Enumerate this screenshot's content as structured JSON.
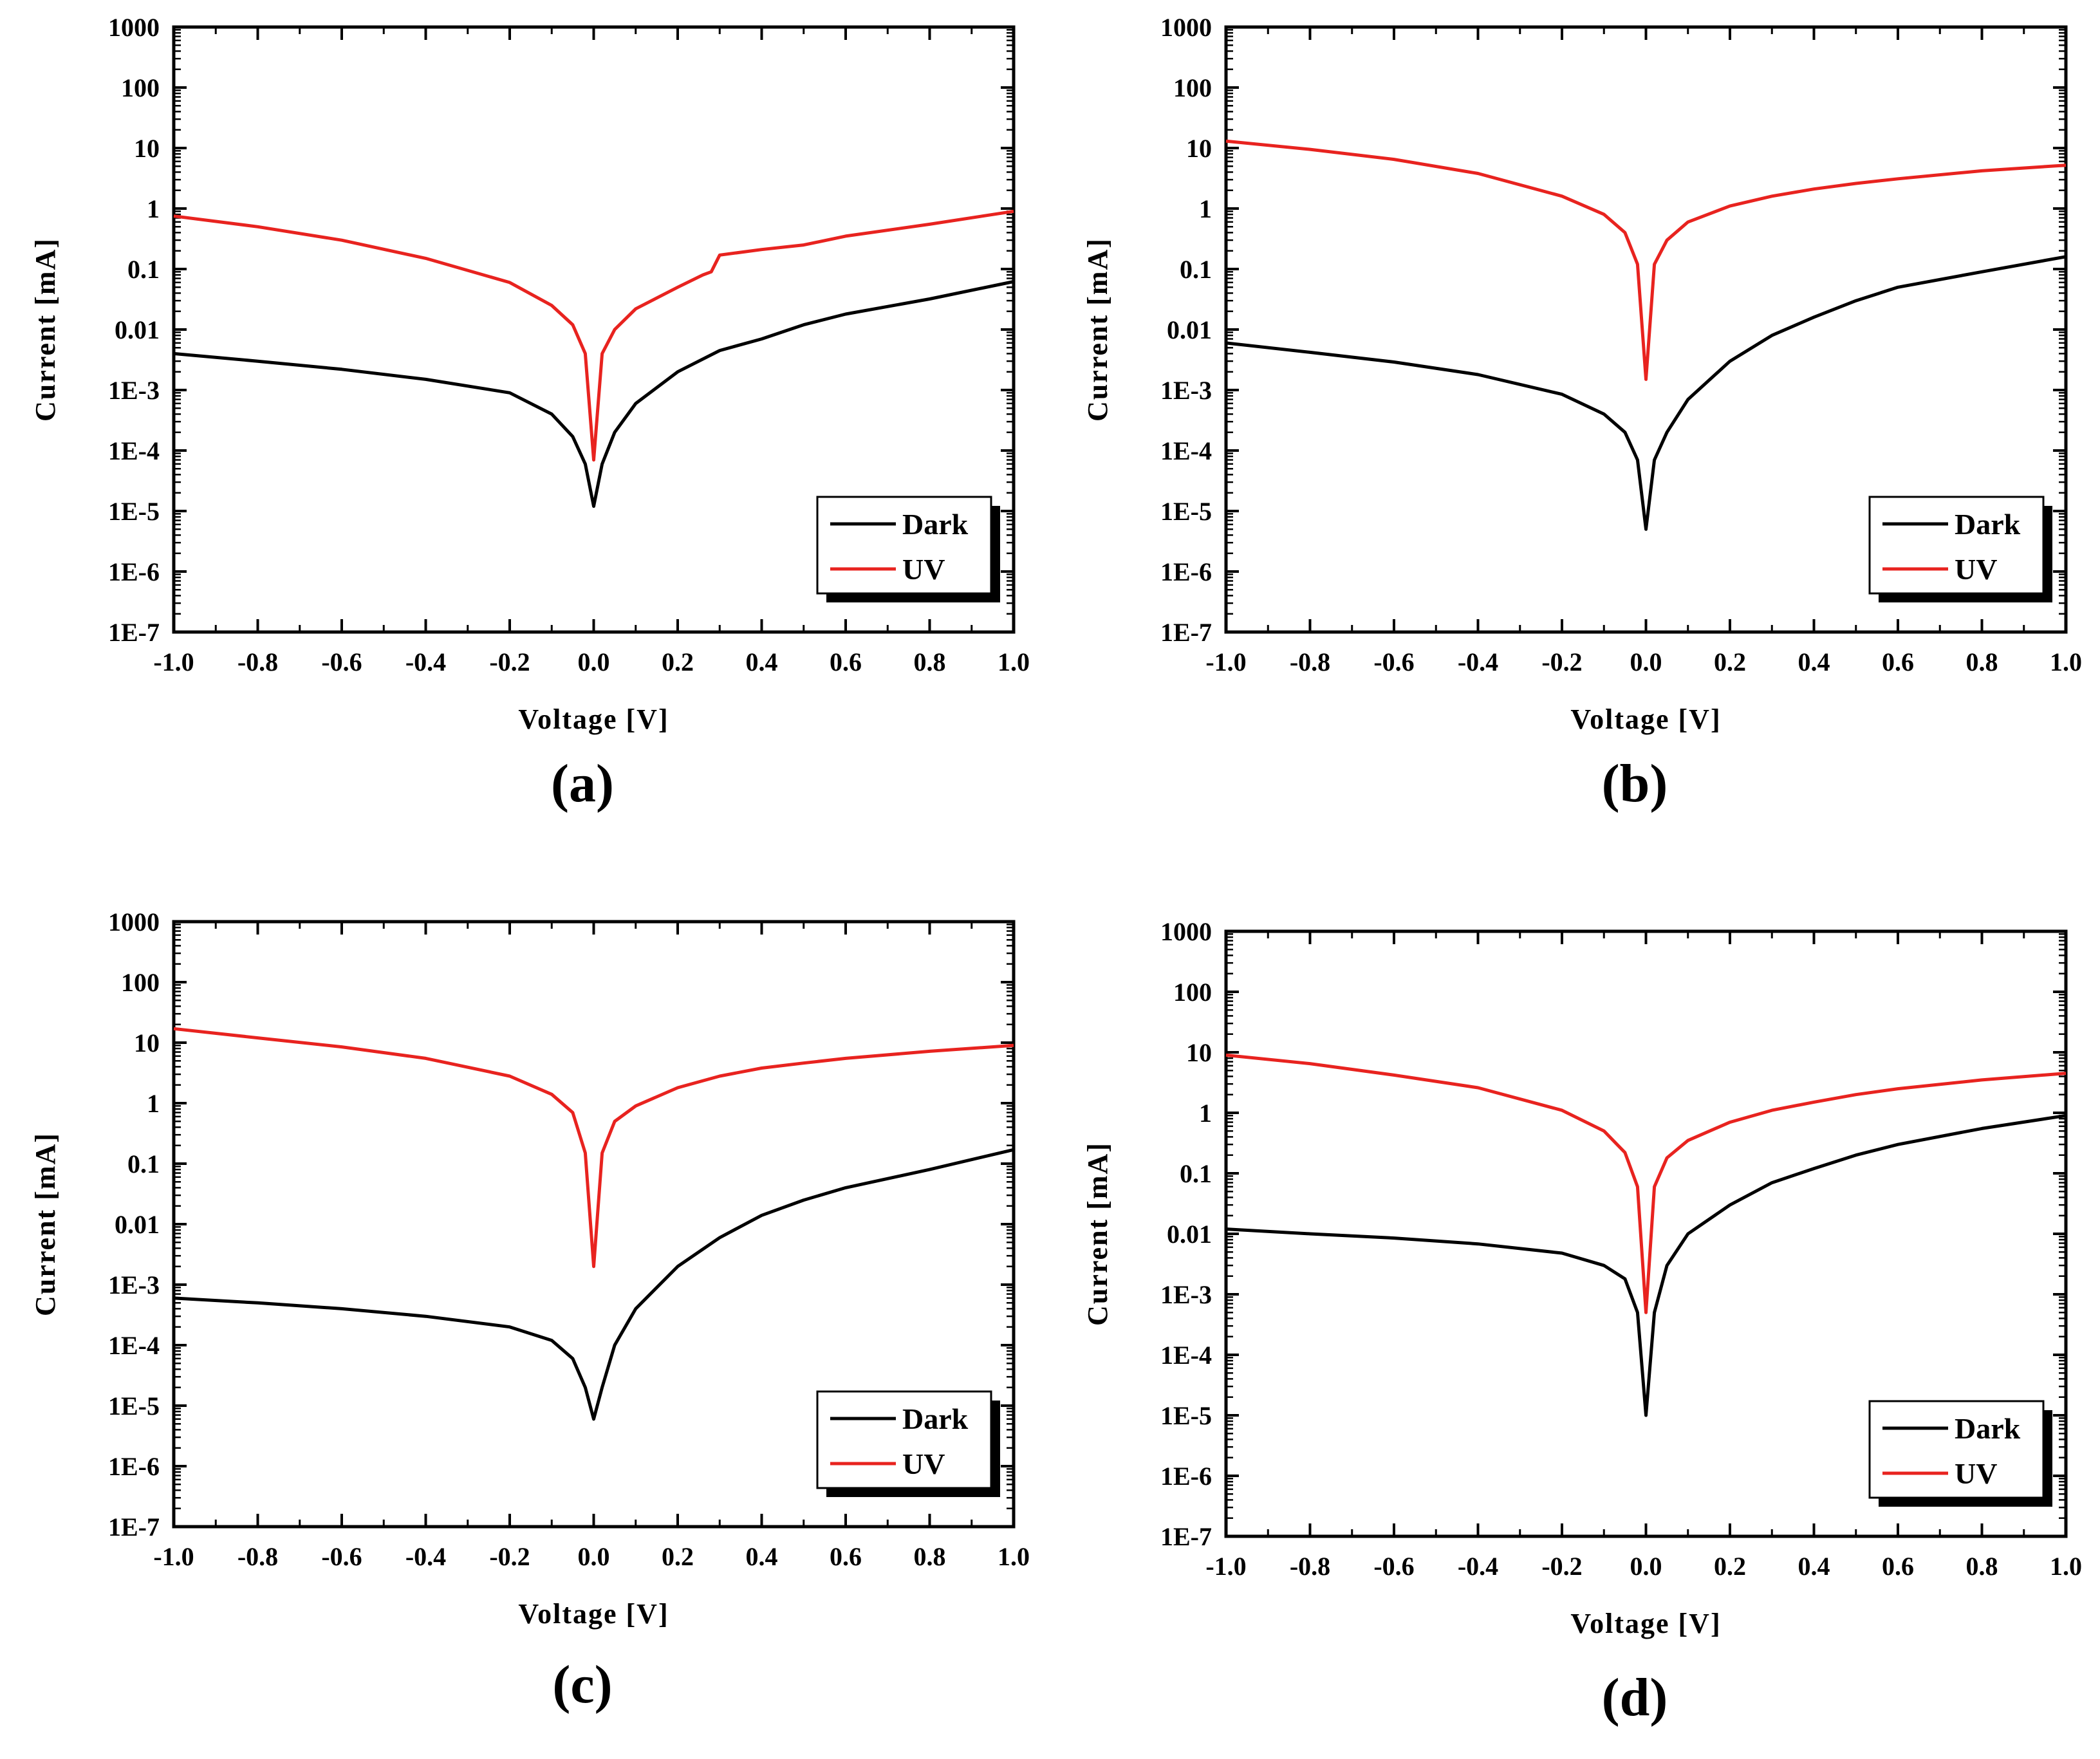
{
  "chart_data": [
    {
      "type": "line",
      "panel": "(a)",
      "xlabel": "Voltage [V]",
      "ylabel": "Current [mA]",
      "xlim": [
        -1.0,
        1.0
      ],
      "ylim": [
        1e-07,
        1000
      ],
      "yscale": "log",
      "xticks": [
        "-1.0",
        "-0.8",
        "-0.6",
        "-0.4",
        "-0.2",
        "0.0",
        "0.2",
        "0.4",
        "0.6",
        "0.8",
        "1.0"
      ],
      "yticks": [
        "1000",
        "100",
        "10",
        "1",
        "0.1",
        "0.01",
        "1E-3",
        "1E-4",
        "1E-5",
        "1E-6",
        "1E-7"
      ],
      "legend_position": "lower-right",
      "series": [
        {
          "name": "Dark",
          "color": "#000000",
          "x": [
            -1.0,
            -0.8,
            -0.6,
            -0.4,
            -0.2,
            -0.1,
            -0.05,
            -0.02,
            0.0,
            0.02,
            0.05,
            0.1,
            0.2,
            0.3,
            0.4,
            0.5,
            0.6,
            0.8,
            1.0
          ],
          "y": [
            0.004,
            0.003,
            0.0022,
            0.0015,
            0.0009,
            0.0004,
            0.00017,
            6e-05,
            1.2e-05,
            6e-05,
            0.0002,
            0.0006,
            0.002,
            0.0045,
            0.007,
            0.012,
            0.018,
            0.032,
            0.062
          ]
        },
        {
          "name": "UV",
          "color": "#e8231f",
          "x": [
            -1.0,
            -0.8,
            -0.6,
            -0.4,
            -0.2,
            -0.1,
            -0.05,
            -0.02,
            0.0,
            0.02,
            0.05,
            0.1,
            0.2,
            0.26,
            0.28,
            0.3,
            0.4,
            0.5,
            0.6,
            0.8,
            1.0
          ],
          "y": [
            0.75,
            0.5,
            0.3,
            0.15,
            0.06,
            0.025,
            0.012,
            0.004,
            7e-05,
            0.004,
            0.01,
            0.022,
            0.05,
            0.08,
            0.09,
            0.17,
            0.21,
            0.25,
            0.35,
            0.55,
            0.9
          ]
        }
      ]
    },
    {
      "type": "line",
      "panel": "(b)",
      "xlabel": "Voltage [V]",
      "ylabel": "Current [mA]",
      "xlim": [
        -1.0,
        1.0
      ],
      "ylim": [
        1e-07,
        1000
      ],
      "yscale": "log",
      "xticks": [
        "-1.0",
        "-0.8",
        "-0.6",
        "-0.4",
        "-0.2",
        "0.0",
        "0.2",
        "0.4",
        "0.6",
        "0.8",
        "1.0"
      ],
      "yticks": [
        "1000",
        "100",
        "10",
        "1",
        "0.1",
        "0.01",
        "1E-3",
        "1E-4",
        "1E-5",
        "1E-6",
        "1E-7"
      ],
      "legend_position": "lower-right",
      "series": [
        {
          "name": "Dark",
          "color": "#000000",
          "x": [
            -1.0,
            -0.8,
            -0.6,
            -0.4,
            -0.2,
            -0.1,
            -0.05,
            -0.02,
            0.0,
            0.02,
            0.05,
            0.1,
            0.2,
            0.3,
            0.4,
            0.5,
            0.6,
            0.8,
            1.0
          ],
          "y": [
            0.006,
            0.0042,
            0.0029,
            0.0018,
            0.00085,
            0.0004,
            0.0002,
            7e-05,
            5e-06,
            7e-05,
            0.0002,
            0.0007,
            0.003,
            0.008,
            0.016,
            0.03,
            0.05,
            0.09,
            0.16
          ]
        },
        {
          "name": "UV",
          "color": "#e8231f",
          "x": [
            -1.0,
            -0.8,
            -0.6,
            -0.4,
            -0.2,
            -0.1,
            -0.05,
            -0.02,
            0.0,
            0.02,
            0.05,
            0.1,
            0.2,
            0.3,
            0.4,
            0.5,
            0.6,
            0.8,
            1.0
          ],
          "y": [
            13,
            9.5,
            6.5,
            3.8,
            1.6,
            0.8,
            0.4,
            0.12,
            0.0015,
            0.12,
            0.3,
            0.6,
            1.1,
            1.6,
            2.1,
            2.6,
            3.1,
            4.2,
            5.2
          ]
        }
      ]
    },
    {
      "type": "line",
      "panel": "(c)",
      "xlabel": "Voltage [V]",
      "ylabel": "Current [mA]",
      "xlim": [
        -1.0,
        1.0
      ],
      "ylim": [
        1e-07,
        1000
      ],
      "yscale": "log",
      "xticks": [
        "-1.0",
        "-0.8",
        "-0.6",
        "-0.4",
        "-0.2",
        "0.0",
        "0.2",
        "0.4",
        "0.6",
        "0.8",
        "1.0"
      ],
      "yticks": [
        "1000",
        "100",
        "10",
        "1",
        "0.1",
        "0.01",
        "1E-3",
        "1E-4",
        "1E-5",
        "1E-6",
        "1E-7"
      ],
      "legend_position": "lower-right",
      "series": [
        {
          "name": "Dark",
          "color": "#000000",
          "x": [
            -1.0,
            -0.8,
            -0.6,
            -0.4,
            -0.2,
            -0.1,
            -0.05,
            -0.02,
            0.0,
            0.02,
            0.05,
            0.1,
            0.2,
            0.3,
            0.4,
            0.5,
            0.6,
            0.8,
            1.0
          ],
          "y": [
            0.0006,
            0.0005,
            0.0004,
            0.0003,
            0.0002,
            0.00012,
            6e-05,
            2e-05,
            6e-06,
            2e-05,
            0.0001,
            0.0004,
            0.002,
            0.006,
            0.014,
            0.025,
            0.04,
            0.08,
            0.17
          ]
        },
        {
          "name": "UV",
          "color": "#e8231f",
          "x": [
            -1.0,
            -0.8,
            -0.6,
            -0.4,
            -0.2,
            -0.1,
            -0.05,
            -0.02,
            0.0,
            0.02,
            0.05,
            0.1,
            0.2,
            0.3,
            0.4,
            0.5,
            0.6,
            0.8,
            1.0
          ],
          "y": [
            17,
            12,
            8.5,
            5.5,
            2.8,
            1.4,
            0.7,
            0.15,
            0.002,
            0.15,
            0.5,
            0.9,
            1.8,
            2.8,
            3.8,
            4.6,
            5.5,
            7.2,
            9
          ]
        }
      ]
    },
    {
      "type": "line",
      "panel": "(d)",
      "xlabel": "Voltage [V]",
      "ylabel": "Current [mA]",
      "xlim": [
        -1.0,
        1.0
      ],
      "ylim": [
        1e-07,
        1000
      ],
      "yscale": "log",
      "xticks": [
        "-1.0",
        "-0.8",
        "-0.6",
        "-0.4",
        "-0.2",
        "0.0",
        "0.2",
        "0.4",
        "0.6",
        "0.8",
        "1.0"
      ],
      "yticks": [
        "1000",
        "100",
        "10",
        "1",
        "0.1",
        "0.01",
        "1E-3",
        "1E-4",
        "1E-5",
        "1E-6",
        "1E-7"
      ],
      "legend_position": "lower-right",
      "series": [
        {
          "name": "Dark",
          "color": "#000000",
          "x": [
            -1.0,
            -0.8,
            -0.6,
            -0.4,
            -0.2,
            -0.1,
            -0.05,
            -0.02,
            0.0,
            0.02,
            0.05,
            0.1,
            0.2,
            0.3,
            0.4,
            0.5,
            0.6,
            0.8,
            1.0
          ],
          "y": [
            0.012,
            0.01,
            0.0085,
            0.0068,
            0.0048,
            0.003,
            0.0018,
            0.0005,
            1e-05,
            0.0005,
            0.003,
            0.01,
            0.03,
            0.07,
            0.12,
            0.2,
            0.3,
            0.55,
            0.9
          ]
        },
        {
          "name": "UV",
          "color": "#e8231f",
          "x": [
            -1.0,
            -0.8,
            -0.6,
            -0.4,
            -0.2,
            -0.1,
            -0.05,
            -0.02,
            0.0,
            0.02,
            0.05,
            0.1,
            0.2,
            0.3,
            0.4,
            0.5,
            0.6,
            0.8,
            1.0
          ],
          "y": [
            9,
            6.5,
            4.2,
            2.6,
            1.1,
            0.5,
            0.22,
            0.06,
            0.0005,
            0.06,
            0.18,
            0.35,
            0.7,
            1.1,
            1.5,
            2,
            2.5,
            3.5,
            4.5
          ]
        }
      ]
    }
  ]
}
